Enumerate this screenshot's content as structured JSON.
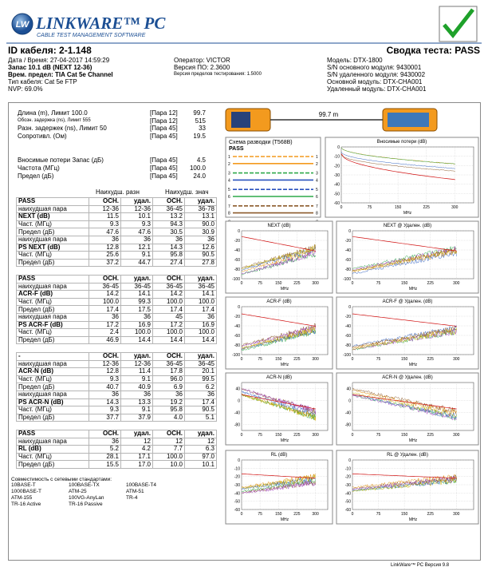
{
  "header": {
    "logo": "LW",
    "brand": "LINKWARE™ PC",
    "tagline": "CABLE TEST MANAGEMENT SOFTWARE"
  },
  "info": {
    "id": "ID кабеля: 2-1.148",
    "summary": "Сводка теста: PASS",
    "left": [
      "Дата / Время: 27-04-2017  14:59:29",
      "Запас 10.1 dB (NEXT 12-36)",
      "Врем. предел: TIA Cat 5e Channel",
      "Тип кабеля: Cat 5e FTP",
      "NVP: 69.0%"
    ],
    "middle": [
      "Оператор: VICTOR",
      "Версия ПО: 2.3600",
      "Версия пределов тестирования: 1.5000"
    ],
    "right": [
      "Модель: DTX-1800",
      "S/N основного модуля: 9430001",
      "S/N удаленного модуля: 9430002",
      "Основной модуль: DTX-CHA001",
      "Удаленный модуль: DTX-CHA001"
    ]
  },
  "summary": {
    "rows": [
      [
        "Длина (m), Лимит 100.0",
        "[Пара 12]",
        "99.7"
      ],
      [
        "Обозн. задержка (ns), Лимит 555",
        "[Пара 12]",
        "515"
      ],
      [
        "Разн. задержек (ns), Лимит 50",
        "[Пара 45]",
        "33"
      ],
      [
        "Сопротивл. (Ом)",
        "[Пара 45]",
        "19.5"
      ],
      [
        "Вносимые потери Запас (дБ)",
        "[Пара 45]",
        "4.5"
      ],
      [
        "Частота (МГц)",
        "[Пара 45]",
        "100.0"
      ],
      [
        "Предел (дБ)",
        "[Пара 45]",
        "24.0"
      ]
    ]
  },
  "results": {
    "head": [
      "Наихудш. разн",
      "Наихудш. знач"
    ],
    "blocks": [
      [
        [
          "PASS",
          "ОСН.",
          "удал.",
          "ОСН.",
          "удал."
        ],
        [
          "наихудшая пара",
          "12-36",
          "12-36",
          "36-45",
          "36-78"
        ],
        [
          "NEXT (dB)",
          "11.5",
          "10.1",
          "13.2",
          "13.1"
        ],
        [
          "Част. (МГц)",
          "9.3",
          "9.3",
          "94.3",
          "90.0"
        ],
        [
          "Предел (дБ)",
          "47.6",
          "47.6",
          "30.5",
          "30.9"
        ],
        [
          "наихудшая пара",
          "36",
          "36",
          "36",
          "36"
        ],
        [
          "PS NEXT (dB)",
          "12.8",
          "12.1",
          "14.3",
          "12.6"
        ],
        [
          "Част. (МГц)",
          "25.6",
          "9.1",
          "95.8",
          "90.5"
        ],
        [
          "Предел (дБ)",
          "37.2",
          "44.7",
          "27.4",
          "27.8"
        ]
      ],
      [
        [
          "PASS",
          "ОСН.",
          "удал.",
          "ОСН.",
          "удал."
        ],
        [
          "наихудшая пара",
          "36-45",
          "36-45",
          "36-45",
          "36-45"
        ],
        [
          "ACR-F (dB)",
          "14.2",
          "14.1",
          "14.2",
          "14.1"
        ],
        [
          "Част. (МГц)",
          "100.0",
          "99.3",
          "100.0",
          "100.0"
        ],
        [
          "Предел (дБ)",
          "17.4",
          "17.5",
          "17.4",
          "17.4"
        ],
        [
          "наихудшая пара",
          "36",
          "36",
          "45",
          "36"
        ],
        [
          "PS ACR-F (dB)",
          "17.2",
          "16.9",
          "17.2",
          "16.9"
        ],
        [
          "Част. (МГц)",
          "2.4",
          "100.0",
          "100.0",
          "100.0"
        ],
        [
          "Предел (дБ)",
          "46.9",
          "14.4",
          "14.4",
          "14.4"
        ]
      ],
      [
        [
          "-",
          "ОСН.",
          "удал.",
          "ОСН.",
          "удал."
        ],
        [
          "наихудшая пара",
          "12-36",
          "12-36",
          "36-45",
          "36-45"
        ],
        [
          "ACR-N (dB)",
          "12.8",
          "11.4",
          "17.8",
          "20.1"
        ],
        [
          "Част. (МГц)",
          "9.3",
          "9.1",
          "96.0",
          "99.5"
        ],
        [
          "Предел (дБ)",
          "40.7",
          "40.9",
          "6.9",
          "6.2"
        ],
        [
          "наихудшая пара",
          "36",
          "36",
          "36",
          "36"
        ],
        [
          "PS ACR-N (dB)",
          "14.3",
          "13.3",
          "19.2",
          "17.4"
        ],
        [
          "Част. (МГц)",
          "9.3",
          "9.1",
          "95.8",
          "90.5"
        ],
        [
          "Предел (дБ)",
          "37.7",
          "37.9",
          "4.0",
          "5.1"
        ]
      ],
      [
        [
          "PASS",
          "ОСН.",
          "удал.",
          "ОСН.",
          "удал."
        ],
        [
          "наихудшая пара",
          "36",
          "12",
          "12",
          "12"
        ],
        [
          "RL (dB)",
          "5.2",
          "4.2",
          "7.7",
          "6.3"
        ],
        [
          "Част. (МГц)",
          "28.1",
          "17.1",
          "100.0",
          "97.0"
        ],
        [
          "Предел (дБ)",
          "15.5",
          "17.0",
          "10.0",
          "10.1"
        ]
      ]
    ]
  },
  "standards": {
    "title": "Совместимость с сетевыми стандартами:",
    "items": [
      "10BASE-T",
      "100BASE-TX",
      "100BASE-T4",
      "1000BASE-T",
      "ATM-25",
      "ATM-51",
      "ATM-155",
      "100VG-AnyLan",
      "TR-4",
      "TR-16 Active",
      "TR-16 Passive"
    ]
  },
  "length": "99.7 m",
  "wiremap": {
    "title": "Схема разводки (T568B)",
    "result": "PASS",
    "pins": [
      "1",
      "2",
      "3",
      "4",
      "5",
      "6",
      "7",
      "8",
      "S"
    ]
  },
  "graphs": {
    "x": {
      "ticks": [
        0,
        75,
        150,
        225,
        300
      ],
      "xlim": [
        0,
        350
      ],
      "label": "MHz"
    },
    "list": [
      {
        "title": "Вносимые потери (dB)",
        "yticks": [
          0,
          -10,
          -20,
          -30,
          -40,
          -50,
          -60
        ],
        "ylim": [
          -60,
          0
        ]
      },
      {
        "title": "NEXT (dB)",
        "yticks": [
          0,
          -20,
          -40,
          -60,
          -80,
          -100
        ],
        "ylim": [
          -100,
          0
        ]
      },
      {
        "title": "NEXT @ Удален. (dB)",
        "yticks": [
          0,
          -20,
          -40,
          -60,
          -80,
          -100
        ],
        "ylim": [
          -100,
          0
        ]
      },
      {
        "title": "ACR-F (dB)",
        "yticks": [
          0,
          -20,
          -40,
          -60,
          -80,
          -100
        ],
        "ylim": [
          -100,
          0
        ]
      },
      {
        "title": "ACR-F @ Удален. (dB)",
        "yticks": [
          0,
          -20,
          -40,
          -60,
          -80,
          -100
        ],
        "ylim": [
          -100,
          0
        ]
      },
      {
        "title": "ACR-N (dB)",
        "yticks": [
          40,
          0,
          -40,
          -80
        ],
        "ylim": [
          -100,
          60
        ]
      },
      {
        "title": "ACR-N @ Удален. (dB)",
        "yticks": [
          40,
          0,
          -40,
          -80
        ],
        "ylim": [
          -100,
          60
        ]
      },
      {
        "title": "RL (dB)",
        "yticks": [
          0,
          -10,
          -20,
          -30,
          -40,
          -50,
          -60
        ],
        "ylim": [
          -60,
          0
        ]
      },
      {
        "title": "RL @ Удален. (dB)",
        "yticks": [
          0,
          -10,
          -20,
          -30,
          -40,
          -50,
          -60
        ],
        "ylim": [
          -60,
          0
        ]
      }
    ]
  },
  "footer": "LinkWare™ PC Версия 9.8"
}
